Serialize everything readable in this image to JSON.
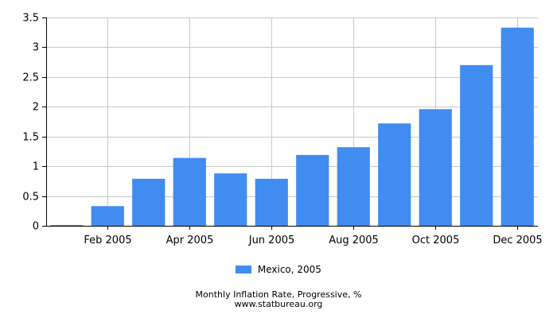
{
  "chart_data": {
    "type": "bar",
    "title": "Monthly Inflation Rate, Progressive, %",
    "source": "www.statbureau.org",
    "xlabel": "",
    "ylabel": "",
    "ylim": [
      0,
      3.5
    ],
    "yticks": [
      "0",
      "0.5",
      "1",
      "1.5",
      "2",
      "2.5",
      "3",
      "3.5"
    ],
    "ytick_values": [
      0,
      0.5,
      1,
      1.5,
      2,
      2.5,
      3,
      3.5
    ],
    "categories": [
      "Jan 2005",
      "Feb 2005",
      "Mar 2005",
      "Apr 2005",
      "May 2005",
      "Jun 2005",
      "Jul 2005",
      "Aug 2005",
      "Sep 2005",
      "Oct 2005",
      "Nov 2005",
      "Dec 2005"
    ],
    "xtick_labels": [
      "",
      "Feb 2005",
      "",
      "Apr 2005",
      "",
      "Jun 2005",
      "",
      "Aug 2005",
      "",
      "Oct 2005",
      "",
      "Dec 2005"
    ],
    "series": [
      {
        "name": "Mexico, 2005",
        "color": "#418CF0",
        "values": [
          0.01,
          0.33,
          0.79,
          1.14,
          0.88,
          0.79,
          1.19,
          1.32,
          1.72,
          1.96,
          2.7,
          3.33
        ]
      }
    ],
    "grid": true,
    "legend_position": "bottom"
  }
}
